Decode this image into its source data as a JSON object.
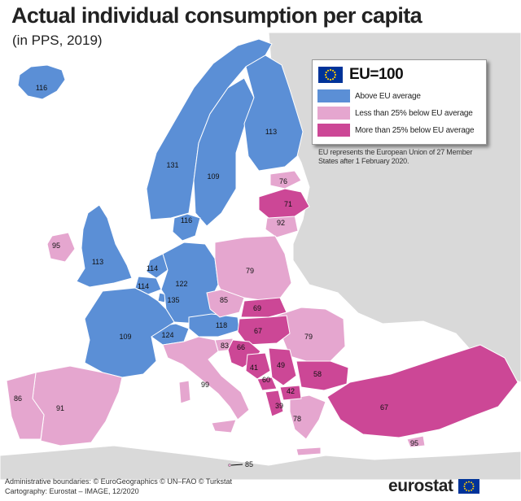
{
  "title": "Actual individual consumption per capita",
  "subtitle": "(in PPS, 2019)",
  "legend": {
    "header": "EU=100",
    "items": [
      {
        "label": "Above EU average",
        "color": "#5b8fd6"
      },
      {
        "label": "Less than 25% below EU average",
        "color": "#e5a6cf"
      },
      {
        "label": "More than 25% below EU average",
        "color": "#cc4796"
      }
    ]
  },
  "note": "EU represents the European Union of 27 Member States after 1 February 2020.",
  "credits": {
    "line1": "Administrative boundaries: © EuroGeographics © UN–FAO © Turkstat",
    "line2": "Cartography: Eurostat – IMAGE, 12/2020"
  },
  "brand": "eurostat",
  "colors": {
    "sea": "#ffffff",
    "non_data": "#d9d9d9",
    "above": "#5b8fd6",
    "less": "#e5a6cf",
    "more": "#cc4796"
  },
  "map_values": [
    {
      "name": "Iceland",
      "value": "116"
    },
    {
      "name": "Norway",
      "value": "131"
    },
    {
      "name": "Sweden",
      "value": "109"
    },
    {
      "name": "Finland",
      "value": "113"
    },
    {
      "name": "Estonia",
      "value": "76"
    },
    {
      "name": "Latvia",
      "value": "71"
    },
    {
      "name": "Lithuania",
      "value": "92"
    },
    {
      "name": "Denmark",
      "value": "116"
    },
    {
      "name": "Ireland",
      "value": "95"
    },
    {
      "name": "United Kingdom",
      "value": "113"
    },
    {
      "name": "Netherlands",
      "value": "114"
    },
    {
      "name": "Belgium",
      "value": "114"
    },
    {
      "name": "Luxembourg",
      "value": "135"
    },
    {
      "name": "Germany",
      "value": "122"
    },
    {
      "name": "Poland",
      "value": "79"
    },
    {
      "name": "Czechia",
      "value": "85"
    },
    {
      "name": "Slovakia",
      "value": "69"
    },
    {
      "name": "Austria",
      "value": "118"
    },
    {
      "name": "Hungary",
      "value": "67"
    },
    {
      "name": "Switzerland",
      "value": "124"
    },
    {
      "name": "France",
      "value": "109"
    },
    {
      "name": "Slovenia",
      "value": "83"
    },
    {
      "name": "Croatia",
      "value": "66"
    },
    {
      "name": "Bosnia and Herzegovina",
      "value": "41"
    },
    {
      "name": "Serbia",
      "value": "49"
    },
    {
      "name": "Montenegro",
      "value": "60"
    },
    {
      "name": "North Macedonia",
      "value": "42"
    },
    {
      "name": "Albania",
      "value": "39"
    },
    {
      "name": "Romania",
      "value": "79"
    },
    {
      "name": "Bulgaria",
      "value": "58"
    },
    {
      "name": "Italy",
      "value": "99"
    },
    {
      "name": "Greece",
      "value": "78"
    },
    {
      "name": "Turkey",
      "value": "67"
    },
    {
      "name": "Cyprus",
      "value": "95"
    },
    {
      "name": "Spain",
      "value": "91"
    },
    {
      "name": "Portugal",
      "value": "86"
    },
    {
      "name": "Malta",
      "value": "85"
    }
  ]
}
